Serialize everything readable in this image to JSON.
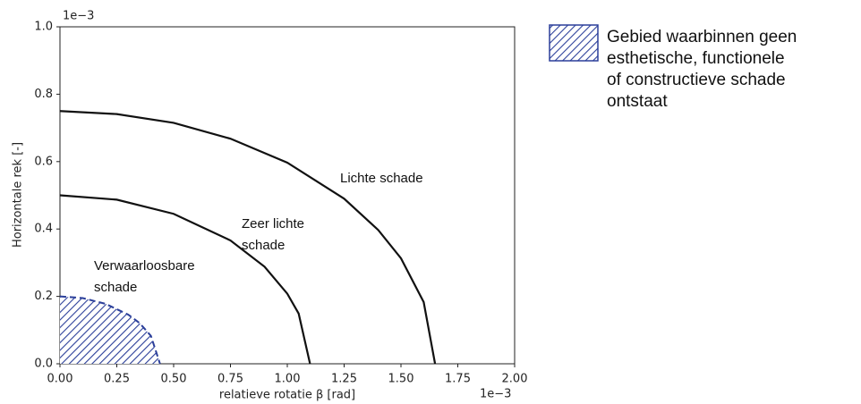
{
  "chart_data": {
    "type": "line",
    "x_offset_label": "1e−3",
    "y_offset_label": "1e−3",
    "xlabel": "relatieve rotatie β [rad]",
    "ylabel": "Horizontale rek [-]",
    "xlim": [
      0,
      2
    ],
    "ylim": [
      0,
      1
    ],
    "xticks": [
      {
        "value": 0,
        "label": "0.00"
      },
      0.25,
      {
        "value": 0.5,
        "label": "0.50"
      },
      0.75,
      {
        "value": 1,
        "label": "1.00"
      },
      1.25,
      {
        "value": 1.5,
        "label": "1.50"
      },
      1.75,
      {
        "value": 2,
        "label": "2.00"
      }
    ],
    "yticks": [
      {
        "value": 0,
        "label": "0.0"
      },
      0.2,
      0.4,
      0.6,
      0.8,
      {
        "value": 1,
        "label": "1.0"
      }
    ],
    "series": [
      {
        "color": "#111111",
        "x": [
          0,
          0.25,
          0.5,
          0.75,
          1.0,
          1.25,
          1.4,
          1.5,
          1.6,
          1.65
        ],
        "values": [
          0.75,
          0.741,
          0.715,
          0.668,
          0.597,
          0.49,
          0.397,
          0.313,
          0.183,
          0
        ]
      },
      {
        "color": "#111111",
        "x": [
          0,
          0.25,
          0.5,
          0.75,
          0.9,
          1.0,
          1.05,
          1.1
        ],
        "values": [
          0.5,
          0.487,
          0.445,
          0.366,
          0.288,
          0.208,
          0.149,
          0
        ]
      },
      {
        "name": "Gebied waarbinnen geen esthetische, functionele of constructieve schade ontstaat",
        "color": "#2b3f9a",
        "dashed": true,
        "hatched": true,
        "x": [
          0,
          0.1,
          0.2,
          0.3,
          0.35,
          0.4,
          0.44
        ],
        "values": [
          0.2,
          0.195,
          0.178,
          0.146,
          0.121,
          0.083,
          0
        ]
      }
    ],
    "annotations": [
      [
        "Lichte schade"
      ],
      [
        "Zeer lichte",
        "schade"
      ],
      [
        "Verwaarloosbare",
        "schade"
      ]
    ],
    "legend": "upper-right-outside"
  }
}
